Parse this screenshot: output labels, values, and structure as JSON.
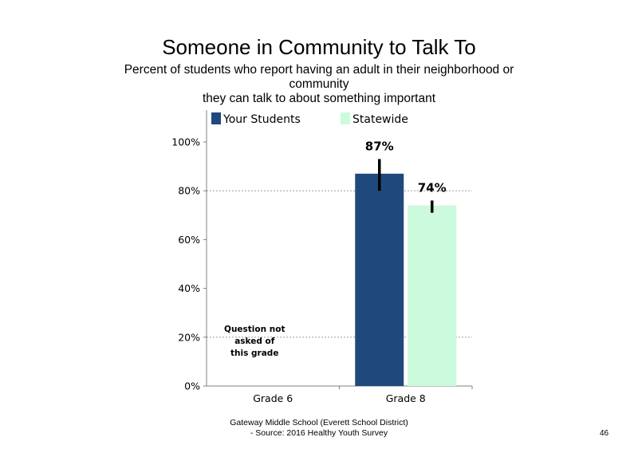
{
  "slide": {
    "title": "Someone in Community to Talk To",
    "subtitle_lines": [
      "Percent of students who report having an adult in their neighborhood or",
      "community",
      "they can talk to about something important"
    ],
    "footer_lines": [
      "Gateway Middle School (Everett School District)",
      "- Source: 2016 Healthy  Youth Survey"
    ],
    "page_number": "46"
  },
  "colors": {
    "your_students": "#1f497d",
    "statewide": "#ccfadc",
    "error_bar": "#000000",
    "gridline": "#a0a0a0",
    "axis": "#808080"
  },
  "chart_data": {
    "type": "bar",
    "title": "Someone in Community to Talk To",
    "categories": [
      "Grade 6",
      "Grade 8"
    ],
    "series": [
      {
        "name": "Your Students",
        "color": "#1f497d",
        "values": [
          null,
          87
        ],
        "labels": [
          "",
          "87%"
        ],
        "ci": [
          null,
          [
            80,
            93
          ]
        ]
      },
      {
        "name": "Statewide",
        "color": "#ccfadc",
        "values": [
          null,
          74
        ],
        "labels": [
          "",
          "74%"
        ],
        "ci": [
          null,
          [
            71,
            76
          ]
        ]
      }
    ],
    "ylim": [
      0,
      100
    ],
    "yticks": [
      0,
      20,
      40,
      60,
      80,
      100
    ],
    "ytick_labels": [
      "0%",
      "20%",
      "40%",
      "60%",
      "80%",
      "100%"
    ],
    "gridlines": [
      20,
      80
    ],
    "grid": "dotted at 20% and 80%",
    "legend_position": "top",
    "annotations": [
      {
        "category": "Grade 6",
        "lines": [
          "Question not",
          "asked of",
          "this grade"
        ]
      }
    ]
  }
}
